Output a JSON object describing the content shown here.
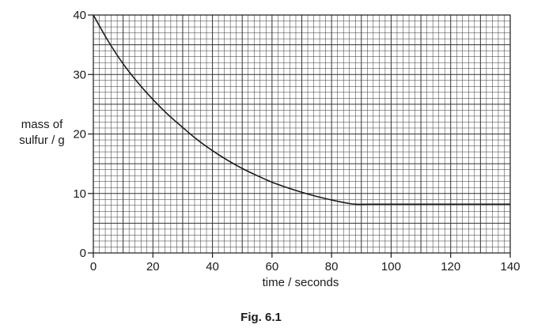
{
  "chart_data": {
    "type": "line",
    "title": "",
    "caption": "Fig. 6.1",
    "ylabel_lines": [
      "mass of",
      "sulfur / g"
    ],
    "xlabel": "time / seconds",
    "xlim": [
      0,
      140
    ],
    "ylim": [
      0,
      40
    ],
    "x_ticks": [
      0,
      20,
      40,
      60,
      80,
      100,
      120,
      140
    ],
    "y_ticks": [
      0,
      10,
      20,
      30,
      40
    ],
    "grid": true,
    "legend": "none",
    "series": [
      {
        "x": [
          0,
          5,
          10,
          15,
          20,
          25,
          30,
          35,
          40,
          45,
          50,
          55,
          60,
          65,
          70,
          75,
          80,
          85,
          88,
          95,
          100,
          110,
          120,
          130,
          140
        ],
        "y": [
          40,
          35.6,
          31.8,
          28.6,
          25.8,
          23.3,
          21.1,
          19.0,
          17.2,
          15.6,
          14.2,
          13.0,
          11.9,
          11.0,
          10.2,
          9.5,
          8.9,
          8.4,
          8.2,
          8.2,
          8.2,
          8.2,
          8.2,
          8.2,
          8.2
        ]
      }
    ],
    "line_color": "#1a1a1a",
    "grid_color": "#333333",
    "axis_color": "#1a1a1a"
  }
}
